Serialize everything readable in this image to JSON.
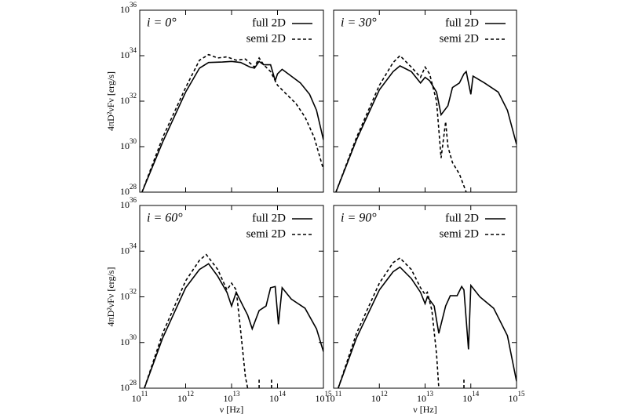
{
  "chart_data": [
    {
      "type": "line",
      "title": "i = 0°",
      "ylabel": "4πD²νFν [erg/s]",
      "log_x": true,
      "log_y": true,
      "xlim": [
        100000000000.0,
        1000000000000000.0
      ],
      "ylim": [
        1e+28,
        1e+36
      ],
      "xticks": [
        100000000000.0,
        1000000000000.0,
        10000000000000.0,
        100000000000000.0,
        1000000000000000.0
      ],
      "yticks": [
        {
          "value": 1e+28,
          "label": "10^28"
        },
        {
          "value": 1e+30,
          "label": "10^30"
        },
        {
          "value": 1e+32,
          "label": "10^32"
        },
        {
          "value": 1e+34,
          "label": "10^34"
        },
        {
          "value": 1e+36,
          "label": "10^36"
        }
      ],
      "legend": "upper right",
      "series": [
        {
          "name": "full 2D",
          "color": "#000000",
          "dash": false,
          "x": [
            112000000000.0,
            316000000000.0,
            1000000000000.0,
            2000000000000.0,
            3160000000000.0,
            6310000000000.0,
            10000000000000.0,
            15800000000000.0,
            25100000000000.0,
            31600000000000.0,
            39800000000000.0,
            50100000000000.0,
            70800000000000.0,
            89100000000000.0,
            100000000000000.0,
            126000000000000.0,
            200000000000000.0,
            316000000000000.0,
            501000000000000.0,
            708000000000000.0,
            1000000000000000.0
          ],
          "values": [
            1e+28,
            1.58e+30,
            2.51e+32,
            2.82e+33,
            5.01e+33,
            5.25e+33,
            5.62e+33,
            5.01e+33,
            3.16e+33,
            2.82e+33,
            5.62e+33,
            3.98e+33,
            3.98e+33,
            7.94e+32,
            1.58e+33,
            2.51e+33,
            1.26e+33,
            6.31e+32,
            2e+32,
            3.98e+31,
            2e+30
          ]
        },
        {
          "name": "semi 2D",
          "color": "#000000",
          "dash": true,
          "x": [
            112000000000.0,
            316000000000.0,
            1000000000000.0,
            2000000000000.0,
            3160000000000.0,
            5010000000000.0,
            7940000000000.0,
            12600000000000.0,
            20000000000000.0,
            31600000000000.0,
            39800000000000.0,
            50100000000000.0,
            70800000000000.0,
            100000000000000.0,
            158000000000000.0,
            251000000000000.0,
            398000000000000.0,
            631000000000000.0,
            1000000000000000.0
          ],
          "values": [
            1e+28,
            2.51e+30,
            3.98e+32,
            6.31e+33,
            1.12e+34,
            7.94e+33,
            8.91e+33,
            6.31e+33,
            7.08e+33,
            3.16e+33,
            7.94e+33,
            3.98e+33,
            2e+33,
            5.01e+32,
            2e+32,
            7.94e+31,
            2e+31,
            2.51e+30,
            1e+29
          ]
        }
      ]
    },
    {
      "type": "line",
      "title": "i = 30°",
      "log_x": true,
      "log_y": true,
      "xlim": [
        100000000000.0,
        1000000000000000.0
      ],
      "ylim": [
        1e+28,
        1e+36
      ],
      "xticks": [
        100000000000.0,
        1000000000000.0,
        10000000000000.0,
        100000000000000.0,
        1000000000000000.0
      ],
      "yticks": [
        1e+28,
        1e+30,
        1e+32,
        1e+34,
        1e+36
      ],
      "legend": "upper right",
      "series": [
        {
          "name": "full 2D",
          "color": "#000000",
          "dash": false,
          "x": [
            112000000000.0,
            316000000000.0,
            1000000000000.0,
            2000000000000.0,
            2820000000000.0,
            5010000000000.0,
            7940000000000.0,
            10000000000000.0,
            12600000000000.0,
            17800000000000.0,
            22400000000000.0,
            31600000000000.0,
            39800000000000.0,
            56200000000000.0,
            70800000000000.0,
            79400000000000.0,
            100000000000000.0,
            112000000000000.0,
            200000000000000.0,
            398000000000000.0,
            631000000000000.0,
            1000000000000000.0
          ],
          "values": [
            1e+28,
            2e+30,
            3.16e+32,
            2e+33,
            3.55e+33,
            2e+33,
            6.31e+32,
            1.12e+33,
            7.94e+32,
            2.51e+32,
            2.51e+31,
            6.31e+31,
            3.98e+32,
            6.31e+32,
            1.58e+33,
            2e+33,
            2e+32,
            1.26e+33,
            6.31e+32,
            2.51e+32,
            3.98e+31,
            1.26e+30
          ]
        },
        {
          "name": "semi 2D",
          "color": "#000000",
          "dash": true,
          "x": [
            112000000000.0,
            316000000000.0,
            1000000000000.0,
            2000000000000.0,
            2820000000000.0,
            5010000000000.0,
            7940000000000.0,
            10000000000000.0,
            12600000000000.0,
            17800000000000.0,
            22400000000000.0,
            28200000000000.0,
            31600000000000.0,
            39800000000000.0,
            56200000000000.0,
            79400000000000.0
          ],
          "values": [
            1e+28,
            2.51e+30,
            5.01e+32,
            5.01e+33,
            1e+34,
            3.16e+33,
            1.12e+33,
            3.16e+33,
            1.58e+33,
            1e+32,
            3.16e+29,
            1.26e+31,
            1e+30,
            2e+29,
            6.31e+28,
            1e+28
          ]
        }
      ]
    },
    {
      "type": "line",
      "title": "i = 60°",
      "xlabel": "ν [Hz]",
      "ylabel": "4πD²νFν [erg/s]",
      "log_x": true,
      "log_y": true,
      "xlim": [
        100000000000.0,
        1000000000000000.0
      ],
      "ylim": [
        1e+28,
        1e+36
      ],
      "xticks": [
        {
          "value": 100000000000.0,
          "label": "10^11"
        },
        {
          "value": 1000000000000.0,
          "label": "10^12"
        },
        {
          "value": 10000000000000.0,
          "label": "10^13"
        },
        {
          "value": 100000000000000.0,
          "label": "10^14"
        },
        {
          "value": 1000000000000000.0,
          "label": "10^15"
        }
      ],
      "yticks": [
        {
          "value": 1e+28,
          "label": "10^28"
        },
        {
          "value": 1e+30,
          "label": "10^30"
        },
        {
          "value": 1e+32,
          "label": "10^32"
        },
        {
          "value": 1e+34,
          "label": "10^34"
        },
        {
          "value": 1e+36,
          "label": "10^36"
        }
      ],
      "legend": "upper right",
      "series": [
        {
          "name": "full 2D",
          "color": "#000000",
          "dash": false,
          "x": [
            126000000000.0,
            316000000000.0,
            1000000000000.0,
            2000000000000.0,
            3160000000000.0,
            5010000000000.0,
            7940000000000.0,
            10000000000000.0,
            12600000000000.0,
            17800000000000.0,
            22400000000000.0,
            28200000000000.0,
            39800000000000.0,
            56200000000000.0,
            70800000000000.0,
            89100000000000.0,
            105000000000000.0,
            126000000000000.0,
            200000000000000.0,
            398000000000000.0,
            708000000000000.0,
            1000000000000000.0
          ],
          "values": [
            1e+28,
            1.58e+30,
            2.51e+32,
            1.58e+33,
            2.82e+33,
            7.94e+32,
            1.58e+32,
            3.98e+31,
            1.58e+32,
            3.98e+31,
            1.58e+31,
            3.98e+30,
            2.51e+31,
            3.98e+31,
            2.51e+32,
            2.82e+32,
            6.31e+30,
            2.51e+32,
            7.94e+31,
            3.16e+31,
            3.98e+30,
            3.98e+29
          ]
        },
        {
          "name": "semi 2D",
          "color": "#000000",
          "dash": true,
          "x": [
            126000000000.0,
            316000000000.0,
            1000000000000.0,
            2000000000000.0,
            2820000000000.0,
            5010000000000.0,
            7940000000000.0,
            10000000000000.0,
            12600000000000.0,
            15800000000000.0,
            20000000000000.0,
            22400000000000.0,
            31600000000000.0,
            39800000000000.0,
            39800000000000.0,
            56200000000000.0,
            74100000000000.0,
            74100000000000.0
          ],
          "values": [
            1e+28,
            2.51e+30,
            5.01e+32,
            3.98e+33,
            7.08e+33,
            1.58e+33,
            2e+32,
            3.98e+32,
            2e+32,
            3.16e+30,
            3.16e+28,
            1e+28,
            null,
            1e+28,
            2.51e+28,
            null,
            1e+28,
            2.51e+28
          ]
        }
      ]
    },
    {
      "type": "line",
      "title": "i = 90°",
      "xlabel": "ν [Hz]",
      "log_x": true,
      "log_y": true,
      "xlim": [
        100000000000.0,
        1000000000000000.0
      ],
      "ylim": [
        1e+28,
        1e+36
      ],
      "xticks": [
        {
          "value": 100000000000.0,
          "label": "10^11"
        },
        {
          "value": 1000000000000.0,
          "label": "10^12"
        },
        {
          "value": 10000000000000.0,
          "label": "10^13"
        },
        {
          "value": 100000000000000.0,
          "label": "10^14"
        },
        {
          "value": 1000000000000000.0,
          "label": "10^15"
        }
      ],
      "yticks": [
        1e+28,
        1e+30,
        1e+32,
        1e+34,
        1e+36
      ],
      "legend": "upper right",
      "series": [
        {
          "name": "full 2D",
          "color": "#000000",
          "dash": false,
          "x": [
            126000000000.0,
            316000000000.0,
            1000000000000.0,
            2000000000000.0,
            2820000000000.0,
            5010000000000.0,
            7940000000000.0,
            10000000000000.0,
            11200000000000.0,
            15800000000000.0,
            20000000000000.0,
            28200000000000.0,
            35500000000000.0,
            50100000000000.0,
            63100000000000.0,
            70800000000000.0,
            89100000000000.0,
            100000000000000.0,
            158000000000000.0,
            316000000000000.0,
            631000000000000.0,
            1000000000000000.0
          ],
          "values": [
            1e+28,
            1.58e+30,
            2e+32,
            1.26e+33,
            2e+33,
            6.31e+32,
            1.58e+32,
            5.01e+31,
            1e+32,
            3.98e+31,
            2.51e+30,
            3.98e+31,
            1.12e+32,
            1.12e+32,
            2.82e+32,
            2e+32,
            5.01e+29,
            3.16e+32,
            1e+32,
            3.16e+31,
            2e+30,
            2e+28
          ]
        },
        {
          "name": "semi 2D",
          "color": "#000000",
          "dash": true,
          "x": [
            126000000000.0,
            316000000000.0,
            1000000000000.0,
            2000000000000.0,
            2820000000000.0,
            5010000000000.0,
            7940000000000.0,
            10000000000000.0,
            11200000000000.0,
            14100000000000.0,
            17800000000000.0,
            20000000000000.0,
            39800000000000.0,
            70800000000000.0,
            70800000000000.0
          ],
          "values": [
            1e+28,
            2.51e+30,
            3.98e+32,
            3.16e+33,
            5.01e+33,
            1.58e+33,
            2.51e+32,
            1.26e+32,
            1.58e+32,
            2.51e+31,
            3.16e+29,
            1e+28,
            null,
            1e+28,
            2.51e+28
          ]
        }
      ]
    }
  ]
}
